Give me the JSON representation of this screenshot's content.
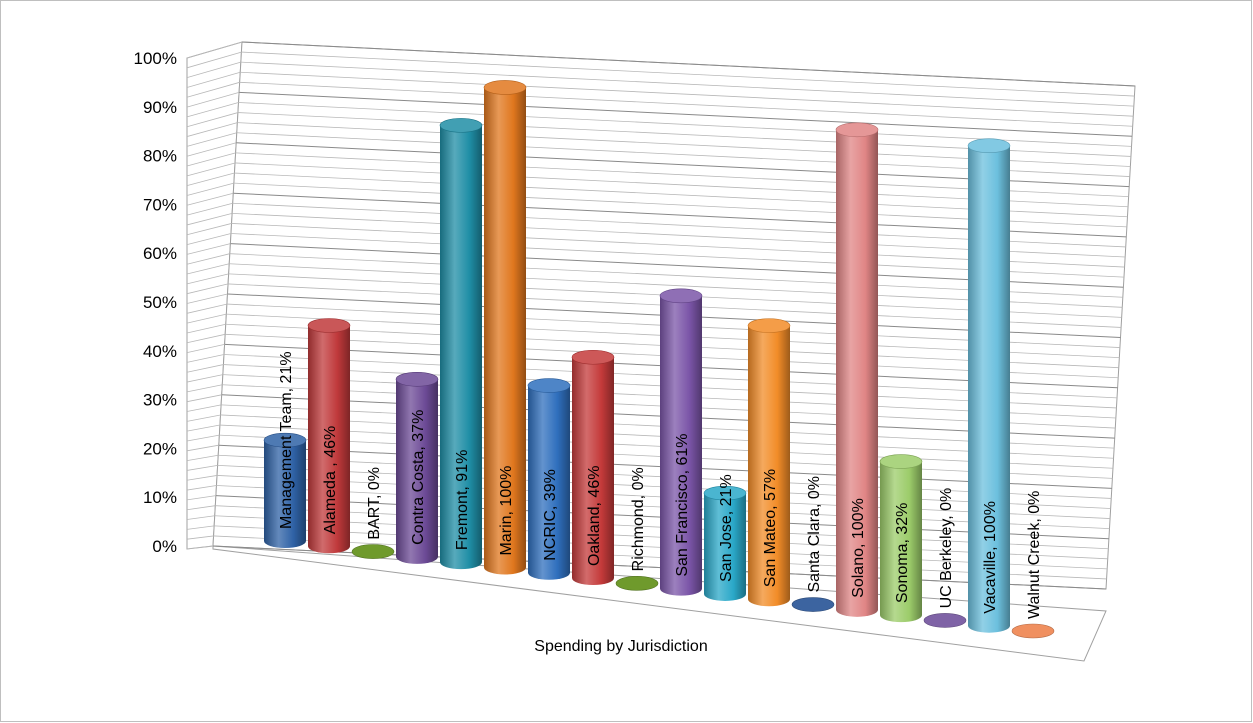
{
  "chart_data": {
    "type": "bar",
    "style": "3d-cylinder",
    "xlabel": "Spending by Jurisdiction",
    "ylabel": "",
    "ylim": [
      0,
      1
    ],
    "yticks": [
      "0%",
      "10%",
      "20%",
      "30%",
      "40%",
      "50%",
      "60%",
      "70%",
      "80%",
      "90%",
      "100%"
    ],
    "grid": true,
    "legend": "none",
    "categories": [
      "Management Team",
      "Alameda ",
      "BART",
      "Contra Costa",
      "Fremont",
      "Marin",
      "NCRIC",
      "Oakland",
      "Richmond",
      "San Francisco",
      "San Jose",
      "San Mateo",
      "Santa Clara",
      "Solano",
      "Sonoma",
      "UC Berkeley",
      "Vacaville",
      "Walnut Creek"
    ],
    "values": [
      0.21,
      0.46,
      0.0,
      0.37,
      0.91,
      1.0,
      0.39,
      0.46,
      0.0,
      0.61,
      0.21,
      0.57,
      0.0,
      1.0,
      0.32,
      0.0,
      1.0,
      0.0
    ],
    "data_labels": [
      "Management Team, 21%",
      "Alameda , 46%",
      "BART, 0%",
      "Contra Costa, 37%",
      "Fremont, 91%",
      "Marin, 100%",
      "NCRIC, 39%",
      "Oakland, 46%",
      "Richmond, 0%",
      "San Francisco, 61%",
      "San Jose, 21%",
      "San Mateo, 57%",
      "Santa Clara, 0%",
      "Solano, 100%",
      "Sonoma, 32%",
      "UC Berkeley, 0%",
      "Vacaville, 100%",
      "Walnut Creek, 0%"
    ],
    "colors": [
      "#2f62a6",
      "#c0393b",
      "#6f9a2c",
      "#6c4a96",
      "#1f8ea6",
      "#e0771e",
      "#2f6fbd",
      "#c43a3a",
      "#6f9a2c",
      "#7b55a8",
      "#2aa8c8",
      "#f28c28",
      "#3c64a0",
      "#e08585",
      "#9ccc6a",
      "#7f63a6",
      "#6cc0de",
      "#f09060"
    ]
  }
}
